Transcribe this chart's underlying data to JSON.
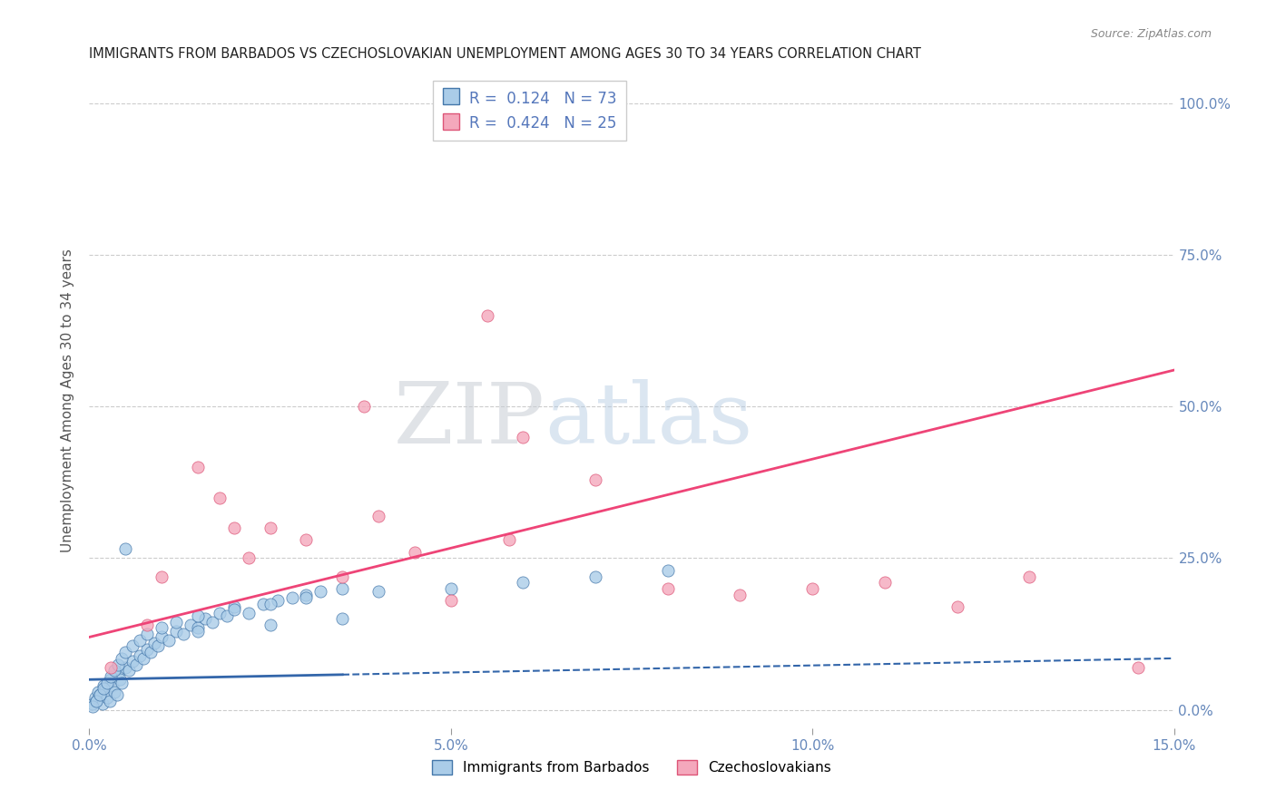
{
  "title": "IMMIGRANTS FROM BARBADOS VS CZECHOSLOVAKIAN UNEMPLOYMENT AMONG AGES 30 TO 34 YEARS CORRELATION CHART",
  "source": "Source: ZipAtlas.com",
  "ylabel": "Unemployment Among Ages 30 to 34 years",
  "xlabel_ticks": [
    "0.0%",
    "5.0%",
    "10.0%",
    "15.0%"
  ],
  "xlabel_vals": [
    0.0,
    5.0,
    10.0,
    15.0
  ],
  "ylabel_ticks": [
    "0.0%",
    "25.0%",
    "50.0%",
    "75.0%",
    "100.0%"
  ],
  "ylabel_vals": [
    0.0,
    25.0,
    50.0,
    75.0,
    100.0
  ],
  "xlim": [
    0.0,
    15.0
  ],
  "ylim": [
    -3.0,
    105.0
  ],
  "blue_R": 0.124,
  "blue_N": 73,
  "pink_R": 0.424,
  "pink_N": 25,
  "blue_color": "#aacce8",
  "pink_color": "#f4a8bc",
  "blue_edge_color": "#4477aa",
  "pink_edge_color": "#dd5577",
  "blue_line_color": "#3366aa",
  "pink_line_color": "#ee4477",
  "watermark_zip": "ZIP",
  "watermark_atlas": "atlas",
  "background_color": "#ffffff",
  "title_fontsize": 10.5,
  "source_fontsize": 9,
  "blue_scatter_x": [
    0.05,
    0.08,
    0.1,
    0.12,
    0.15,
    0.18,
    0.2,
    0.22,
    0.25,
    0.28,
    0.3,
    0.32,
    0.35,
    0.38,
    0.4,
    0.42,
    0.45,
    0.5,
    0.55,
    0.6,
    0.65,
    0.7,
    0.75,
    0.8,
    0.85,
    0.9,
    0.95,
    1.0,
    1.1,
    1.2,
    1.3,
    1.4,
    1.5,
    1.6,
    1.7,
    1.8,
    1.9,
    2.0,
    2.2,
    2.4,
    2.6,
    2.8,
    3.0,
    3.2,
    3.5,
    0.05,
    0.1,
    0.15,
    0.2,
    0.25,
    0.3,
    0.35,
    0.4,
    0.45,
    0.5,
    0.6,
    0.7,
    0.8,
    1.0,
    1.2,
    1.5,
    2.0,
    2.5,
    3.0,
    4.0,
    5.0,
    6.0,
    7.0,
    8.0,
    0.5,
    1.5,
    2.5,
    3.5
  ],
  "blue_scatter_y": [
    1.0,
    2.0,
    1.5,
    3.0,
    2.5,
    1.0,
    4.0,
    3.5,
    2.0,
    1.5,
    5.0,
    4.0,
    3.0,
    2.5,
    6.0,
    5.0,
    4.5,
    7.0,
    6.5,
    8.0,
    7.5,
    9.0,
    8.5,
    10.0,
    9.5,
    11.0,
    10.5,
    12.0,
    11.5,
    13.0,
    12.5,
    14.0,
    13.5,
    15.0,
    14.5,
    16.0,
    15.5,
    17.0,
    16.0,
    17.5,
    18.0,
    18.5,
    19.0,
    19.5,
    20.0,
    0.5,
    1.5,
    2.5,
    3.5,
    4.5,
    5.5,
    6.5,
    7.5,
    8.5,
    9.5,
    10.5,
    11.5,
    12.5,
    13.5,
    14.5,
    15.5,
    16.5,
    17.5,
    18.5,
    19.5,
    20.0,
    21.0,
    22.0,
    23.0,
    26.5,
    13.0,
    14.0,
    15.0
  ],
  "pink_scatter_x": [
    0.3,
    0.8,
    1.5,
    1.8,
    2.2,
    2.5,
    3.0,
    3.5,
    4.0,
    4.5,
    5.0,
    5.5,
    6.0,
    7.0,
    8.0,
    9.0,
    10.0,
    11.0,
    12.0,
    13.0,
    1.0,
    2.0,
    3.8,
    5.8,
    14.5
  ],
  "pink_scatter_y": [
    7.0,
    14.0,
    40.0,
    35.0,
    25.0,
    30.0,
    28.0,
    22.0,
    32.0,
    26.0,
    18.0,
    65.0,
    45.0,
    38.0,
    20.0,
    19.0,
    20.0,
    21.0,
    17.0,
    22.0,
    22.0,
    30.0,
    50.0,
    28.0,
    7.0
  ],
  "blue_line_x0": 0.0,
  "blue_line_x1": 15.0,
  "blue_line_y0": 5.0,
  "blue_line_y1": 8.5,
  "blue_solid_x1": 3.5,
  "pink_line_y0": 12.0,
  "pink_line_y1": 56.0
}
